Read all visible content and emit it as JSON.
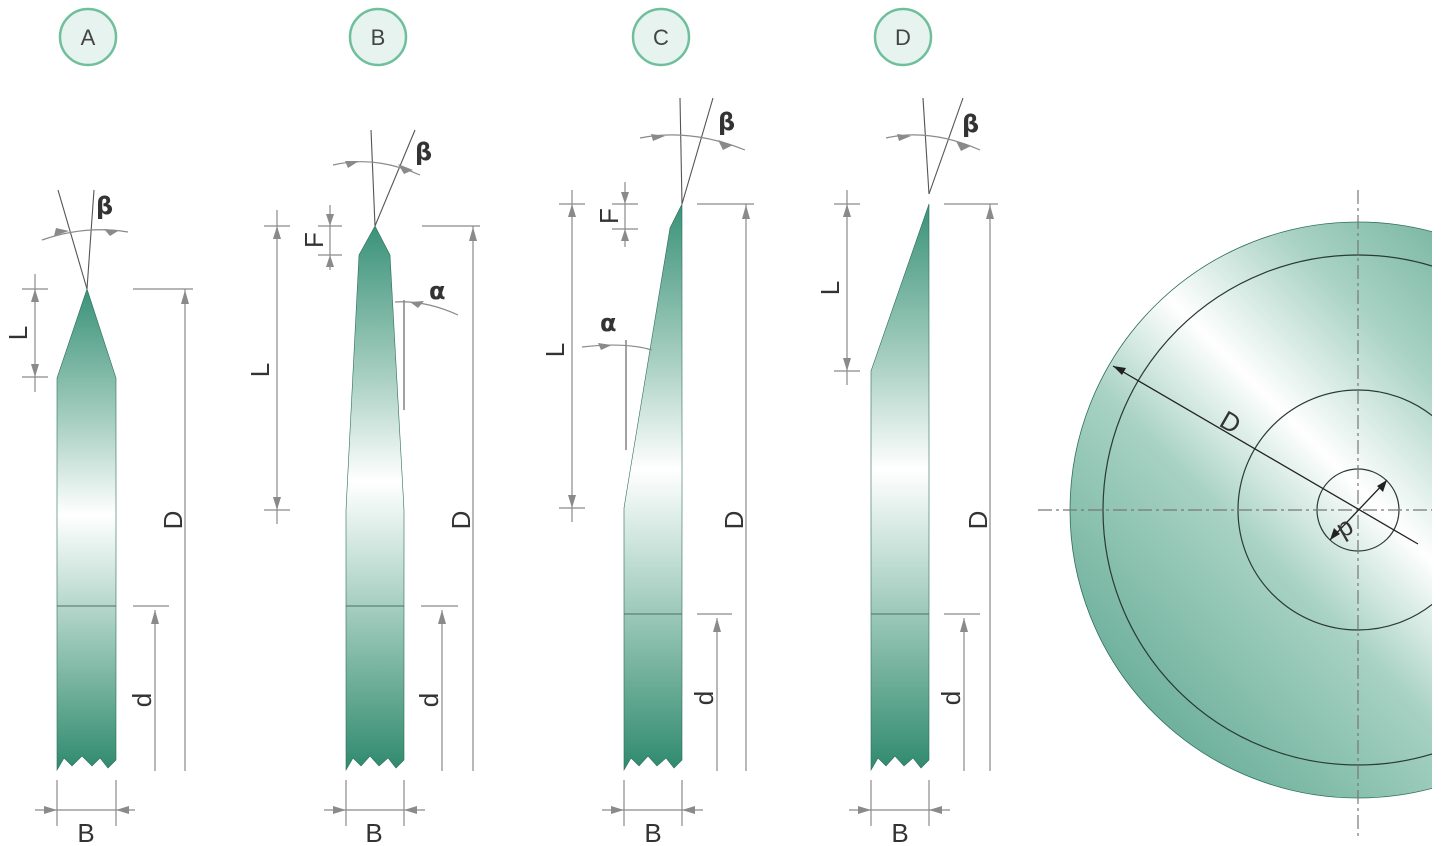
{
  "profiles": [
    {
      "id": "A",
      "labels": {
        "beta": "β",
        "L": "L",
        "D": "D",
        "d": "d",
        "B": "B"
      }
    },
    {
      "id": "B",
      "labels": {
        "beta": "β",
        "F": "F",
        "alpha": "α",
        "L": "L",
        "D": "D",
        "d": "d",
        "B": "B"
      }
    },
    {
      "id": "C",
      "labels": {
        "beta": "β",
        "F": "F",
        "alpha": "α",
        "L": "L",
        "D": "D",
        "d": "d",
        "B": "B"
      }
    },
    {
      "id": "D",
      "labels": {
        "beta": "β",
        "L": "L",
        "D": "D",
        "d": "d",
        "B": "B"
      }
    }
  ],
  "disc": {
    "D_label": "D",
    "d_label": "d"
  },
  "colors": {
    "blade_dark": "#2e8a6e",
    "blade_mid": "#8fc2b0",
    "blade_light": "#ffffff",
    "badge_fill": "#e6f3ee",
    "badge_stroke": "#6fbf9c"
  }
}
